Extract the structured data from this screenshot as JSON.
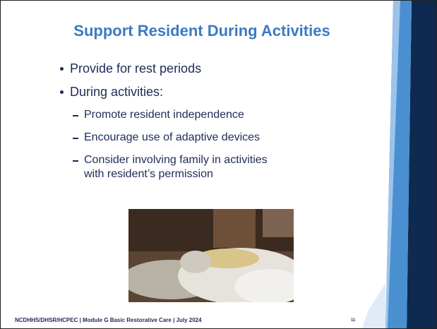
{
  "header": {
    "title": "Support Resident During Activities"
  },
  "bullets": [
    {
      "text": "Provide for rest periods",
      "sub": []
    },
    {
      "text": "During activities:",
      "sub": [
        "Promote resident independence",
        "Encourage use of adaptive devices",
        "Consider involving family in activities with resident’s permission"
      ]
    }
  ],
  "footer": {
    "text": "NCDHHS/DHSR/HCPEC | Module G Basic Restorative Care | July 2024",
    "page_number": "11"
  }
}
